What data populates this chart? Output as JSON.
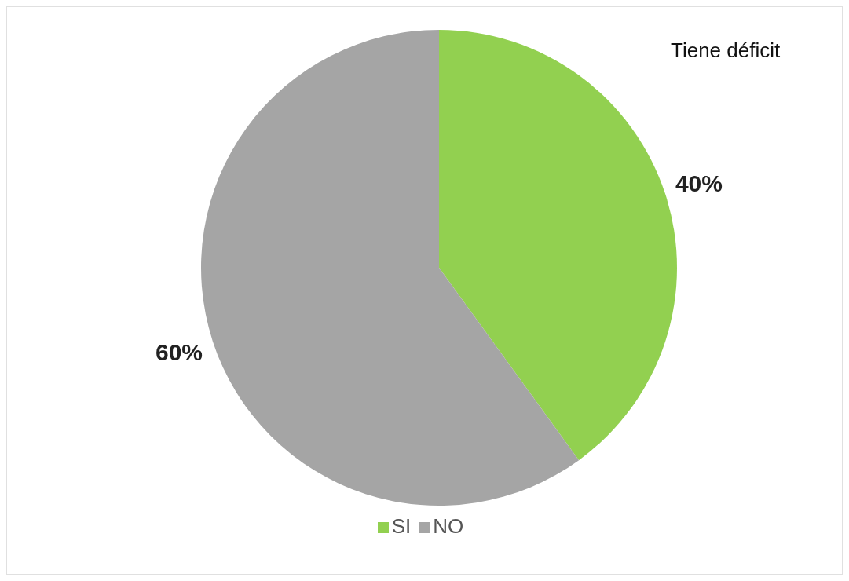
{
  "chart_data": {
    "type": "pie",
    "title": "Tiene déficit",
    "categories": [
      "SI",
      "NO"
    ],
    "values": [
      40,
      60
    ],
    "colors": [
      "#92d050",
      "#a5a5a5"
    ],
    "value_labels": [
      "40%",
      "60%"
    ],
    "legend": "bottom"
  }
}
